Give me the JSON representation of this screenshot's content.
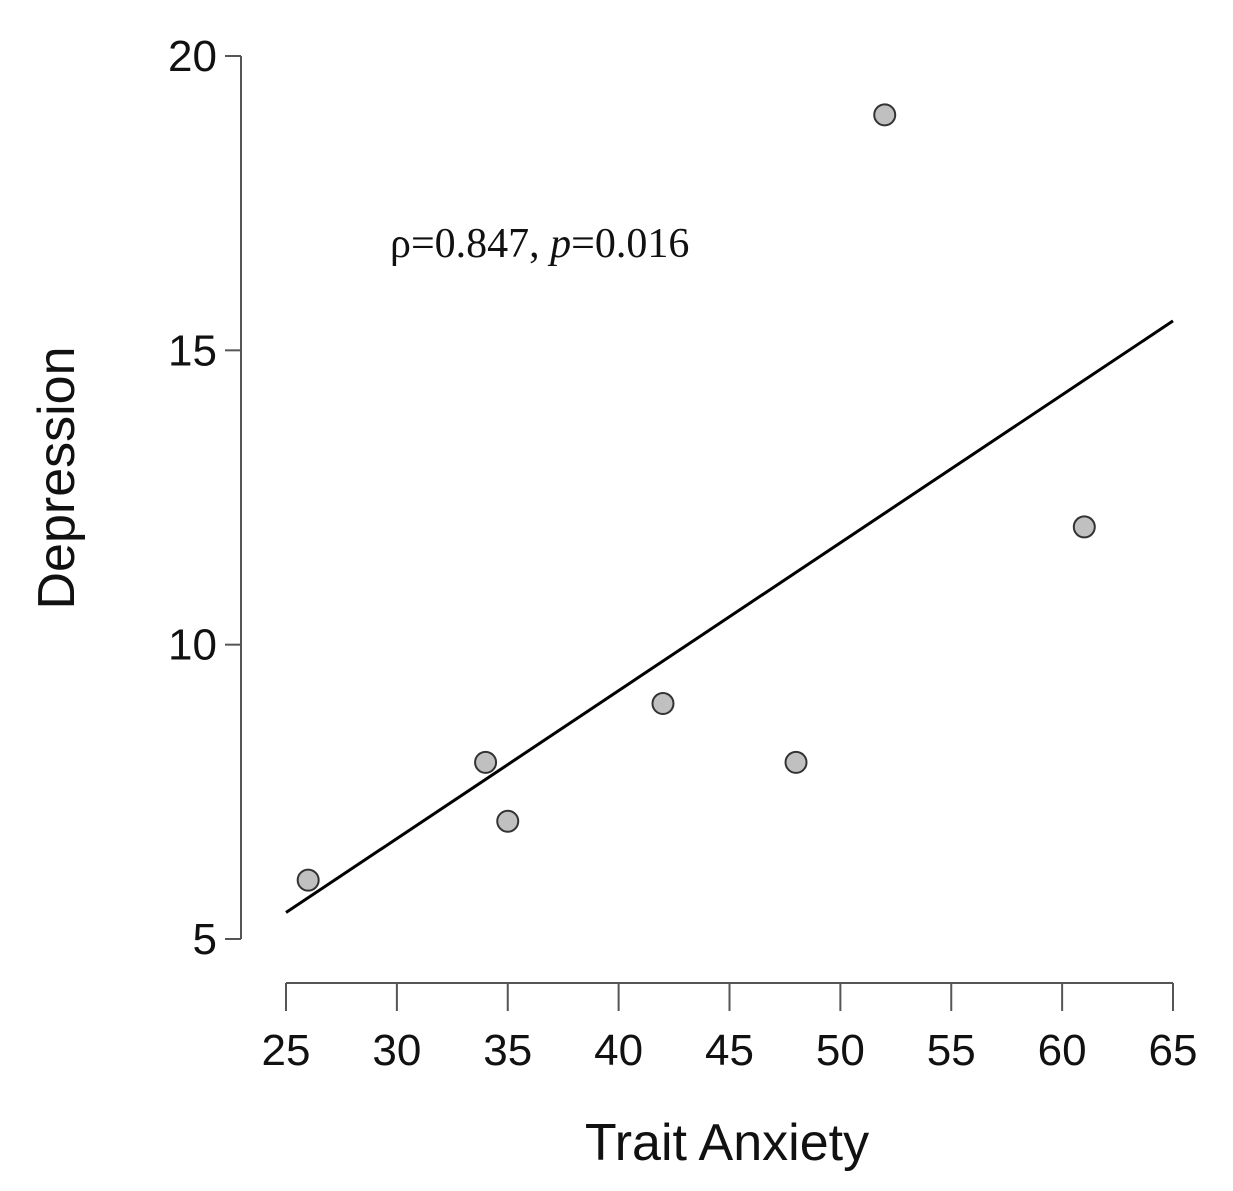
{
  "chart_data": {
    "type": "scatter",
    "title": "",
    "xlabel": "Trait Anxiety",
    "ylabel": "Depression",
    "xlim": [
      25,
      65
    ],
    "ylim": [
      5,
      20
    ],
    "x_ticks": [
      25,
      30,
      35,
      40,
      45,
      50,
      55,
      60,
      65
    ],
    "y_ticks": [
      5,
      10,
      15,
      20
    ],
    "grid": false,
    "legend": "none",
    "series": [
      {
        "points": [
          {
            "x": 26,
            "y": 6
          },
          {
            "x": 34,
            "y": 8
          },
          {
            "x": 35,
            "y": 7
          },
          {
            "x": 42,
            "y": 9
          },
          {
            "x": 48,
            "y": 8
          },
          {
            "x": 52,
            "y": 19
          },
          {
            "x": 61,
            "y": 12
          }
        ],
        "marker_color": "#c0c0c0",
        "marker_edge": "#333333"
      }
    ],
    "fit_line": {
      "x": [
        25,
        65
      ],
      "y": [
        5.45,
        15.5
      ],
      "color": "#000000"
    },
    "annotation": {
      "rho_label": "ρ=0.847, ",
      "p_label": "p",
      "p_value": "=0.016"
    },
    "axis_color": "#555555"
  }
}
